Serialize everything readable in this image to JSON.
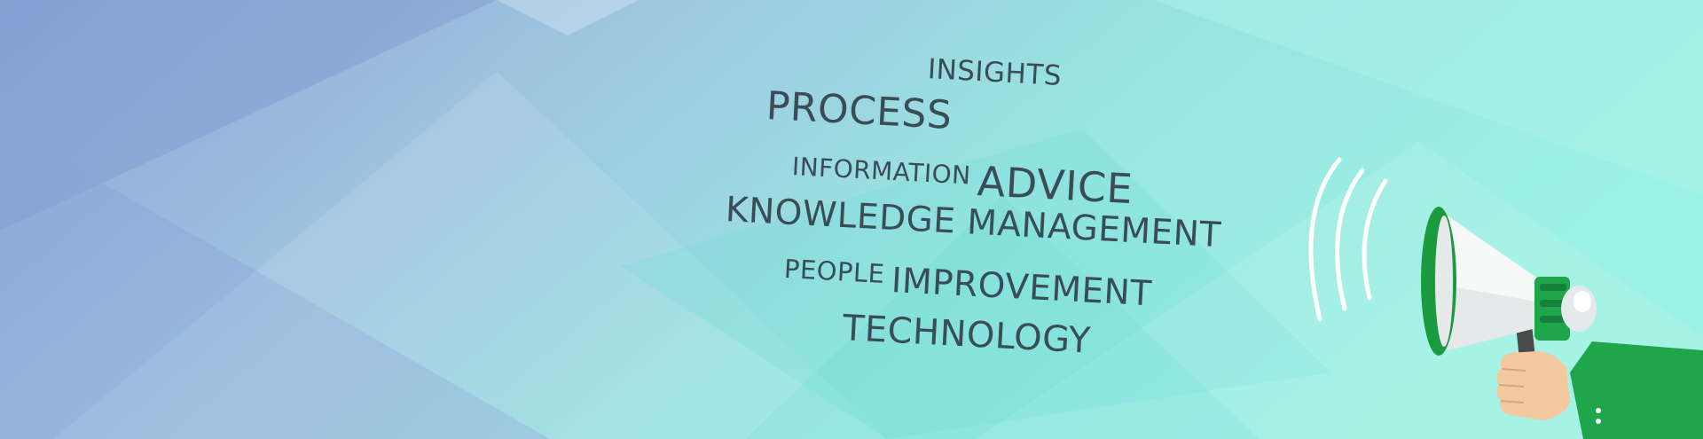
{
  "banner": {
    "words": {
      "insights": "INSIGHTS",
      "process": "PROCESS",
      "information": "INFORMATION",
      "advice": "ADVICE",
      "knowledge_management": "KNOWLEDGE MANAGEMENT",
      "people": "PEOPLE",
      "improvement": "IMPROVEMENT",
      "technology": "TECHNOLOGY"
    },
    "colors": {
      "bg_left": "#8ea8d8",
      "bg_right": "#8ef0e0",
      "text": "#3a4d56",
      "sleeve_green": "#1fa64a",
      "megaphone_green": "#1c9a3f"
    },
    "icons": [
      "megaphone-icon",
      "sound-wave-icon",
      "hand-icon"
    ]
  }
}
